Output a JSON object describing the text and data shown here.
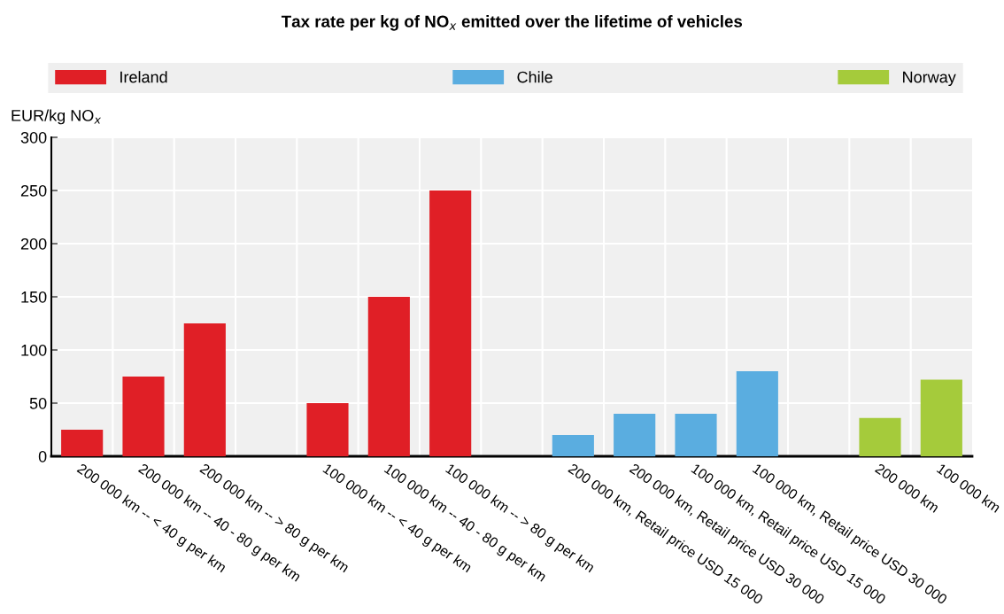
{
  "chart_data": {
    "type": "bar",
    "title": "Tax rate per kg of NO$_{x}$ emitted over the lifetime of vehicles",
    "ylabel": "EUR/kg NO$_{x}$",
    "categories": [
      "200 000 km -- < 40 g per km",
      "200 000 km -- 40 - 80 g per km",
      "200 000 km -- > 80 g per km",
      null,
      "100 000 km -- < 40 g per km",
      "100 000 km -- 40 - 80 g per km",
      "100 000 km -- > 80 g per km",
      null,
      "200 000 km, Retail price USD 15 000",
      "200 000 km, Retail price USD 30 000",
      "100 000 km, Retail price USD 15 000",
      "100 000 km, Retail price USD 30 000",
      null,
      "200 000 km",
      "100 000 km"
    ],
    "series": [
      {
        "name": "Ireland",
        "color": "#e01f26",
        "values": [
          25,
          75,
          125,
          null,
          50,
          150,
          250,
          null,
          null,
          null,
          null,
          null,
          null,
          null,
          null
        ]
      },
      {
        "name": "Chile",
        "color": "#5aade0",
        "values": [
          null,
          null,
          null,
          null,
          null,
          null,
          null,
          null,
          20,
          40,
          40,
          80,
          null,
          null,
          null
        ]
      },
      {
        "name": "Norway",
        "color": "#a5cb3b",
        "values": [
          null,
          null,
          null,
          null,
          null,
          null,
          null,
          null,
          null,
          null,
          null,
          null,
          null,
          36,
          72
        ]
      }
    ],
    "ylim": [
      0,
      300
    ],
    "yticks": [
      0,
      50,
      100,
      150,
      200,
      250,
      300
    ],
    "grid": true,
    "legend": "top"
  }
}
